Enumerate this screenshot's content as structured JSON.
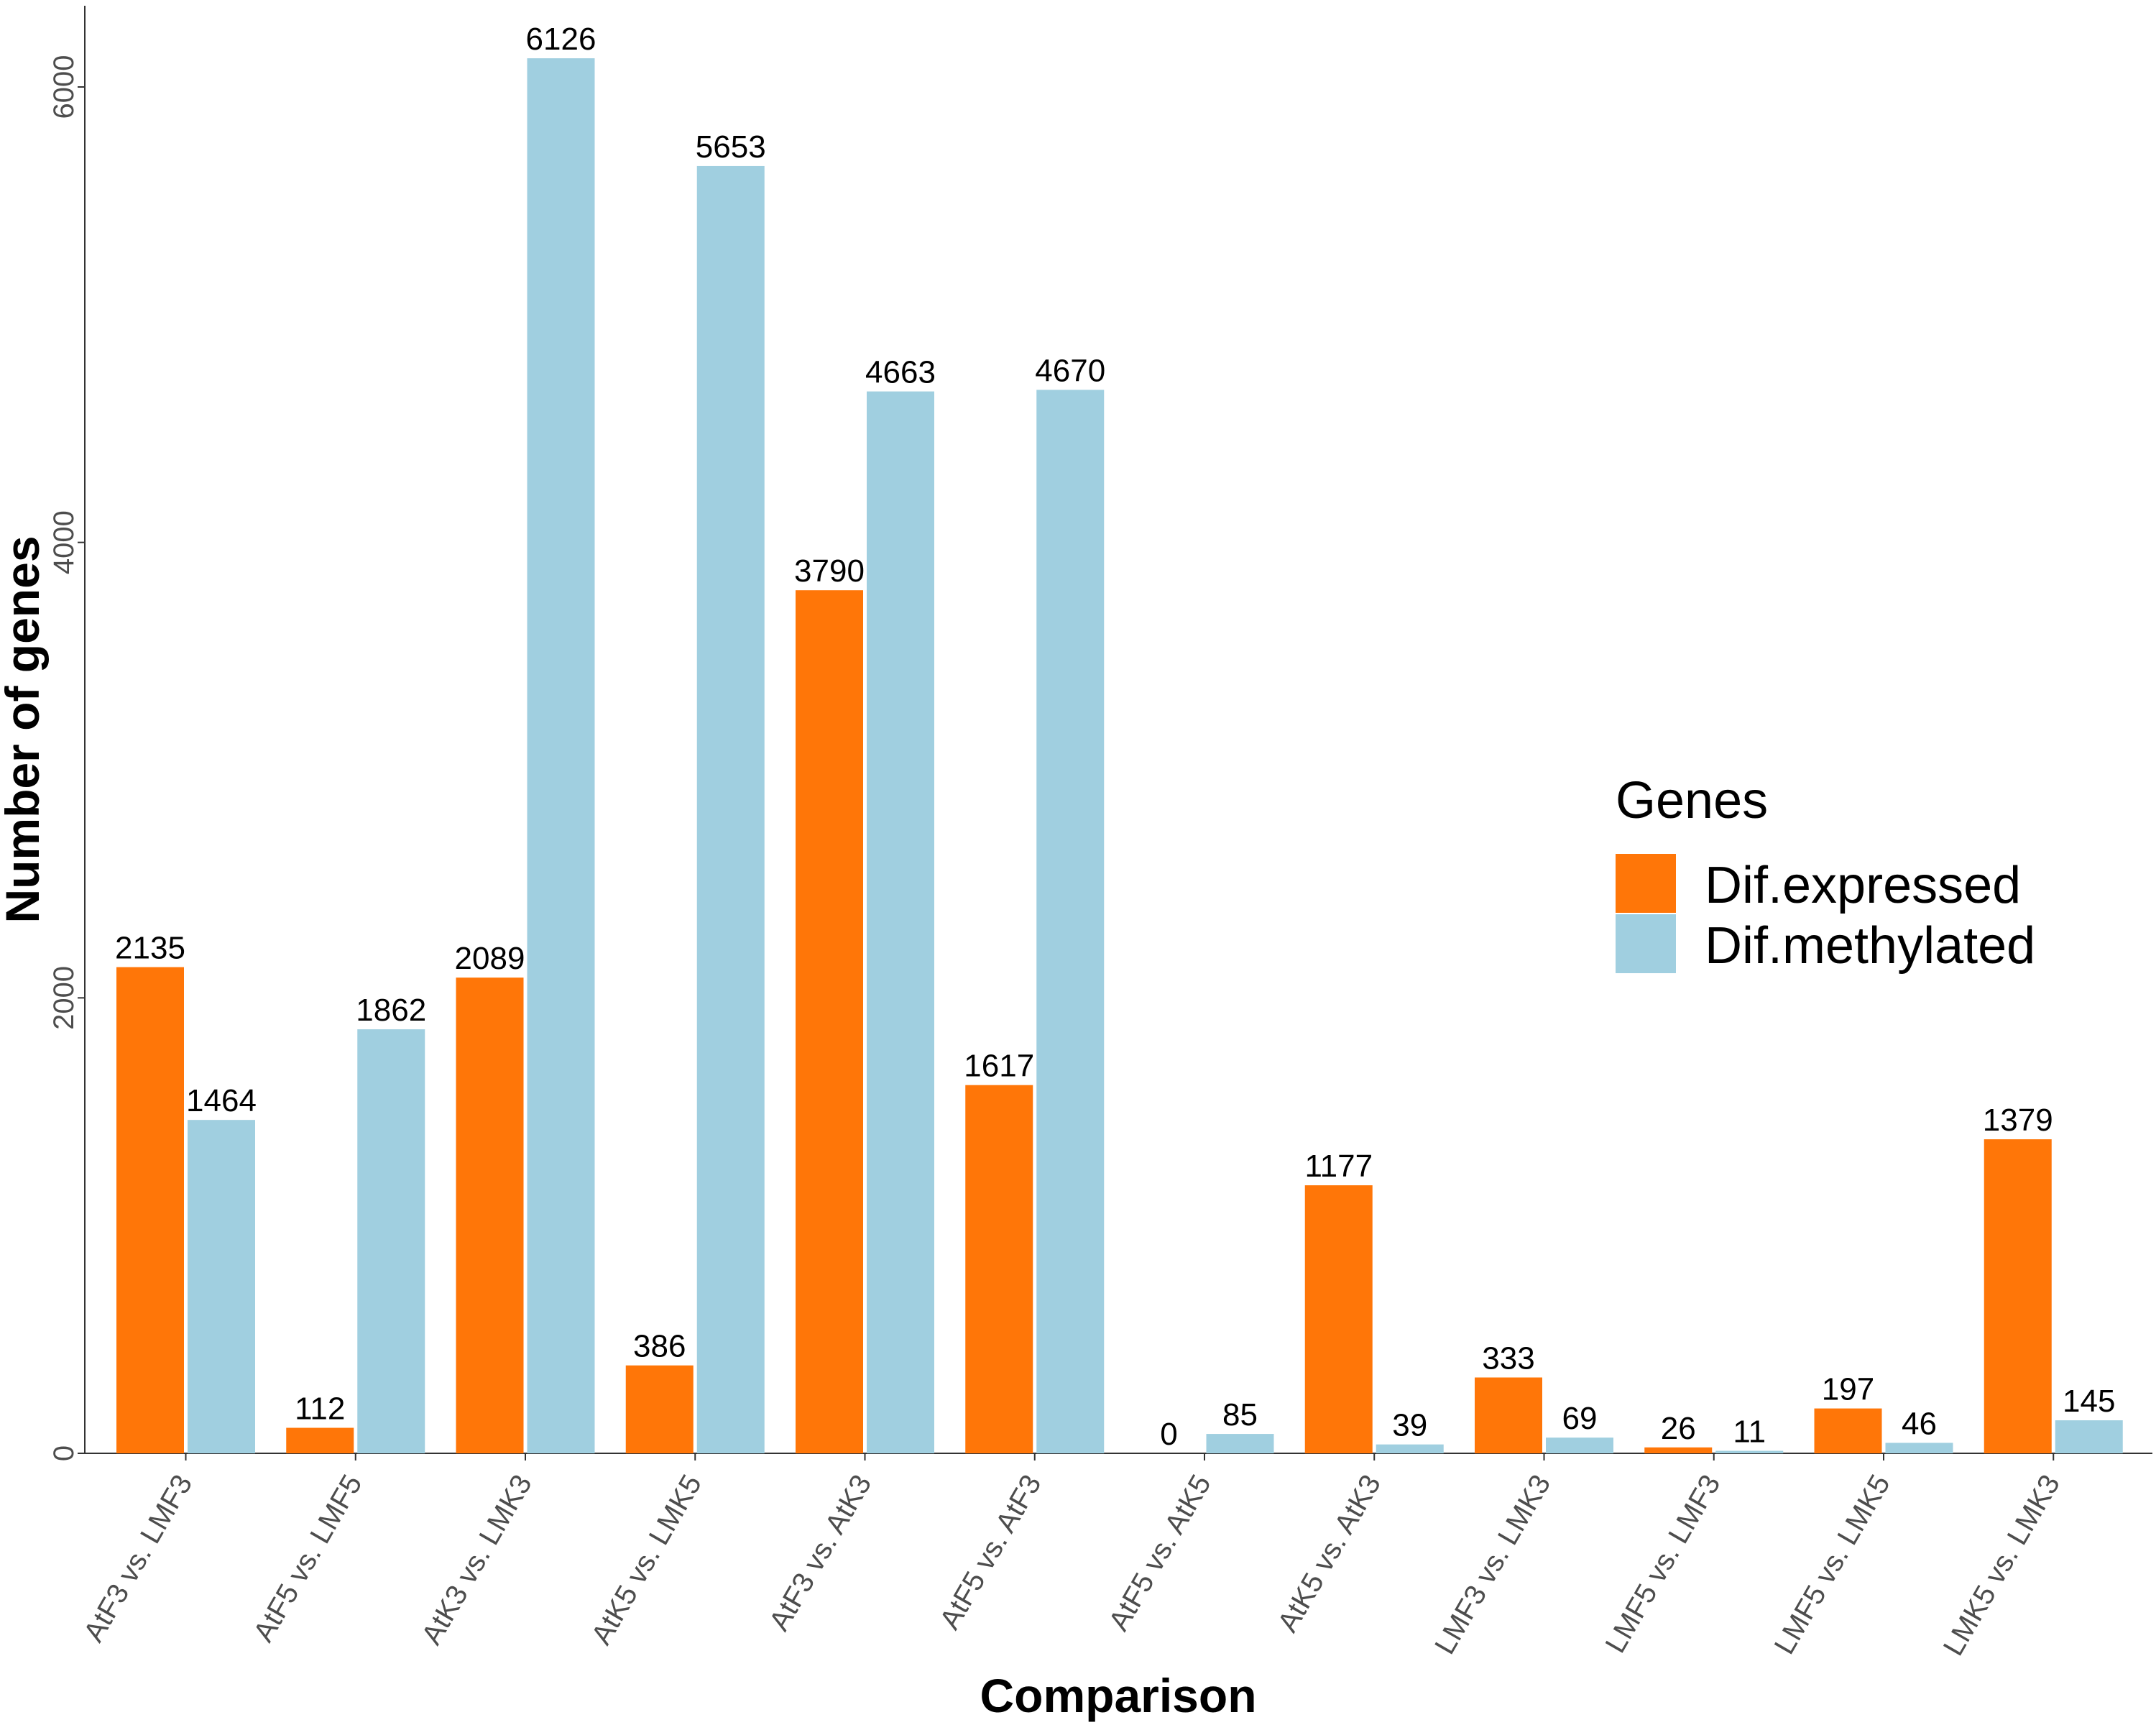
{
  "chart_data": {
    "type": "bar",
    "xlabel": "Comparison",
    "ylabel": "Number of genes",
    "ylim": [
      0,
      6500
    ],
    "yticks": [
      0,
      2000,
      4000,
      6000
    ],
    "grid": false,
    "legend": {
      "title": "Genes",
      "placement": "right"
    },
    "categories": [
      "AtF3 vs. LMF3",
      "AtF5 vs. LMF5",
      "AtK3 vs. LMK3",
      "AtK5 vs. LMK5",
      "AtF3 vs. AtK3",
      "AtF5 vs. AtF3",
      "AtF5 vs. AtK5",
      "AtK5 vs. AtK3",
      "LMF3 vs. LMK3",
      "LMF5 vs. LMF3",
      "LMF5 vs. LMK5",
      "LMK5 vs. LMK3"
    ],
    "series": [
      {
        "name": "Dif.expressed",
        "color": "#ff7608",
        "values": [
          2135,
          112,
          2089,
          386,
          3790,
          1617,
          0,
          1177,
          333,
          26,
          197,
          1379
        ]
      },
      {
        "name": "Dif.methylated",
        "color": "#a0cfe0",
        "values": [
          1464,
          1862,
          6126,
          5653,
          4663,
          4670,
          85,
          39,
          69,
          11,
          46,
          145
        ]
      }
    ]
  }
}
